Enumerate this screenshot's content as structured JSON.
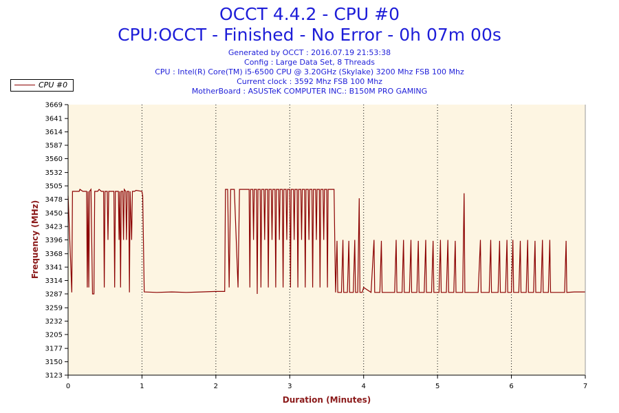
{
  "header": {
    "title": "OCCT 4.4.2 - CPU #0",
    "subtitle": "CPU:OCCT - Finished - No Error - 0h 07m 00s",
    "info_lines": [
      "Generated by OCCT : 2016.07.19 21:53:38",
      "Config : Large Data Set, 8 Threads",
      "CPU : Intel(R) Core(TM) i5-6500 CPU @ 3.20GHz (Skylake) 3200 Mhz FSB 100 Mhz",
      "Current clock : 3592 Mhz FSB 100 Mhz",
      "MotherBoard : ASUSTeK COMPUTER INC.: B150M PRO GAMING"
    ]
  },
  "legend": {
    "label": "CPU #0"
  },
  "colors": {
    "title": "#1d1dd8",
    "axis_label": "#8b1a1a",
    "series": "#8b0000",
    "plot_background": "#fdf5e2"
  },
  "chart_data": {
    "type": "line",
    "xlabel": "Duration (Minutes)",
    "ylabel": "Frequency (MHz)",
    "xlim": [
      0,
      7
    ],
    "ylim": [
      3123,
      3669
    ],
    "x_ticks": [
      0,
      1,
      2,
      3,
      4,
      5,
      6,
      7
    ],
    "y_ticks": [
      3123,
      3150,
      3177,
      3205,
      3232,
      3259,
      3287,
      3314,
      3341,
      3368,
      3396,
      3423,
      3450,
      3478,
      3505,
      3532,
      3560,
      3587,
      3614,
      3641,
      3669
    ],
    "grid": "dotted vertical lines at x ticks",
    "series": [
      {
        "name": "CPU #0",
        "points": [
          [
            0.0,
            3485
          ],
          [
            0.05,
            3290
          ],
          [
            0.06,
            3494
          ],
          [
            0.15,
            3494
          ],
          [
            0.16,
            3498
          ],
          [
            0.2,
            3494
          ],
          [
            0.25,
            3494
          ],
          [
            0.26,
            3300
          ],
          [
            0.27,
            3494
          ],
          [
            0.28,
            3300
          ],
          [
            0.29,
            3494
          ],
          [
            0.31,
            3498
          ],
          [
            0.33,
            3287
          ],
          [
            0.35,
            3287
          ],
          [
            0.36,
            3494
          ],
          [
            0.4,
            3494
          ],
          [
            0.42,
            3498
          ],
          [
            0.45,
            3494
          ],
          [
            0.48,
            3494
          ],
          [
            0.49,
            3300
          ],
          [
            0.5,
            3494
          ],
          [
            0.53,
            3494
          ],
          [
            0.54,
            3396
          ],
          [
            0.55,
            3494
          ],
          [
            0.58,
            3494
          ],
          [
            0.62,
            3494
          ],
          [
            0.63,
            3300
          ],
          [
            0.64,
            3494
          ],
          [
            0.68,
            3494
          ],
          [
            0.69,
            3396
          ],
          [
            0.7,
            3494
          ],
          [
            0.71,
            3300
          ],
          [
            0.72,
            3494
          ],
          [
            0.74,
            3494
          ],
          [
            0.75,
            3396
          ],
          [
            0.76,
            3498
          ],
          [
            0.78,
            3494
          ],
          [
            0.79,
            3396
          ],
          [
            0.8,
            3494
          ],
          [
            0.82,
            3494
          ],
          [
            0.83,
            3290
          ],
          [
            0.84,
            3494
          ],
          [
            0.86,
            3396
          ],
          [
            0.87,
            3494
          ],
          [
            0.9,
            3494
          ],
          [
            0.92,
            3496
          ],
          [
            1.0,
            3494
          ],
          [
            1.01,
            3485
          ],
          [
            1.03,
            3291
          ],
          [
            1.2,
            3290
          ],
          [
            1.4,
            3291
          ],
          [
            1.6,
            3290
          ],
          [
            1.8,
            3291
          ],
          [
            2.0,
            3292
          ],
          [
            2.12,
            3292
          ],
          [
            2.13,
            3498
          ],
          [
            2.16,
            3498
          ],
          [
            2.18,
            3300
          ],
          [
            2.2,
            3498
          ],
          [
            2.25,
            3498
          ],
          [
            2.3,
            3300
          ],
          [
            2.32,
            3498
          ],
          [
            2.4,
            3498
          ],
          [
            2.45,
            3498
          ],
          [
            2.46,
            3300
          ],
          [
            2.47,
            3498
          ],
          [
            2.5,
            3498
          ],
          [
            2.51,
            3396
          ],
          [
            2.52,
            3498
          ],
          [
            2.55,
            3498
          ],
          [
            2.56,
            3287
          ],
          [
            2.57,
            3498
          ],
          [
            2.6,
            3498
          ],
          [
            2.61,
            3300
          ],
          [
            2.62,
            3498
          ],
          [
            2.65,
            3498
          ],
          [
            2.66,
            3396
          ],
          [
            2.67,
            3498
          ],
          [
            2.7,
            3498
          ],
          [
            2.71,
            3300
          ],
          [
            2.72,
            3498
          ],
          [
            2.75,
            3498
          ],
          [
            2.76,
            3396
          ],
          [
            2.77,
            3498
          ],
          [
            2.8,
            3498
          ],
          [
            2.81,
            3300
          ],
          [
            2.82,
            3498
          ],
          [
            2.85,
            3498
          ],
          [
            2.86,
            3396
          ],
          [
            2.87,
            3498
          ],
          [
            2.9,
            3498
          ],
          [
            2.91,
            3300
          ],
          [
            2.92,
            3498
          ],
          [
            2.95,
            3498
          ],
          [
            2.96,
            3396
          ],
          [
            2.97,
            3498
          ],
          [
            3.0,
            3498
          ],
          [
            3.01,
            3300
          ],
          [
            3.02,
            3498
          ],
          [
            3.05,
            3498
          ],
          [
            3.06,
            3396
          ],
          [
            3.07,
            3498
          ],
          [
            3.1,
            3498
          ],
          [
            3.11,
            3300
          ],
          [
            3.12,
            3498
          ],
          [
            3.15,
            3498
          ],
          [
            3.16,
            3396
          ],
          [
            3.17,
            3498
          ],
          [
            3.2,
            3498
          ],
          [
            3.21,
            3300
          ],
          [
            3.22,
            3498
          ],
          [
            3.25,
            3498
          ],
          [
            3.26,
            3396
          ],
          [
            3.27,
            3498
          ],
          [
            3.3,
            3498
          ],
          [
            3.31,
            3300
          ],
          [
            3.32,
            3498
          ],
          [
            3.35,
            3498
          ],
          [
            3.36,
            3396
          ],
          [
            3.37,
            3498
          ],
          [
            3.4,
            3498
          ],
          [
            3.41,
            3300
          ],
          [
            3.42,
            3498
          ],
          [
            3.45,
            3498
          ],
          [
            3.46,
            3396
          ],
          [
            3.47,
            3498
          ],
          [
            3.5,
            3498
          ],
          [
            3.51,
            3300
          ],
          [
            3.52,
            3498
          ],
          [
            3.55,
            3498
          ],
          [
            3.6,
            3498
          ],
          [
            3.61,
            3390
          ],
          [
            3.62,
            3290
          ],
          [
            3.64,
            3394
          ],
          [
            3.65,
            3290
          ],
          [
            3.7,
            3290
          ],
          [
            3.72,
            3396
          ],
          [
            3.73,
            3290
          ],
          [
            3.78,
            3290
          ],
          [
            3.8,
            3394
          ],
          [
            3.81,
            3290
          ],
          [
            3.86,
            3290
          ],
          [
            3.88,
            3396
          ],
          [
            3.89,
            3290
          ],
          [
            3.92,
            3290
          ],
          [
            3.94,
            3480
          ],
          [
            3.95,
            3290
          ],
          [
            3.98,
            3290
          ],
          [
            4.0,
            3300
          ],
          [
            4.1,
            3290
          ],
          [
            4.14,
            3396
          ],
          [
            4.15,
            3290
          ],
          [
            4.22,
            3290
          ],
          [
            4.24,
            3394
          ],
          [
            4.25,
            3290
          ],
          [
            4.35,
            3290
          ],
          [
            4.42,
            3290
          ],
          [
            4.44,
            3396
          ],
          [
            4.45,
            3290
          ],
          [
            4.52,
            3290
          ],
          [
            4.54,
            3396
          ],
          [
            4.55,
            3290
          ],
          [
            4.62,
            3290
          ],
          [
            4.64,
            3396
          ],
          [
            4.65,
            3290
          ],
          [
            4.72,
            3290
          ],
          [
            4.74,
            3394
          ],
          [
            4.75,
            3290
          ],
          [
            4.82,
            3290
          ],
          [
            4.84,
            3396
          ],
          [
            4.85,
            3290
          ],
          [
            4.92,
            3290
          ],
          [
            4.94,
            3394
          ],
          [
            4.95,
            3290
          ],
          [
            5.02,
            3290
          ],
          [
            5.04,
            3396
          ],
          [
            5.05,
            3290
          ],
          [
            5.12,
            3290
          ],
          [
            5.14,
            3396
          ],
          [
            5.15,
            3290
          ],
          [
            5.22,
            3290
          ],
          [
            5.24,
            3394
          ],
          [
            5.25,
            3290
          ],
          [
            5.34,
            3290
          ],
          [
            5.36,
            3490
          ],
          [
            5.37,
            3290
          ],
          [
            5.45,
            3290
          ],
          [
            5.55,
            3290
          ],
          [
            5.58,
            3396
          ],
          [
            5.59,
            3290
          ],
          [
            5.7,
            3290
          ],
          [
            5.72,
            3396
          ],
          [
            5.73,
            3290
          ],
          [
            5.82,
            3290
          ],
          [
            5.84,
            3394
          ],
          [
            5.85,
            3290
          ],
          [
            5.92,
            3290
          ],
          [
            5.94,
            3396
          ],
          [
            5.95,
            3290
          ],
          [
            6.0,
            3290
          ],
          [
            6.02,
            3396
          ],
          [
            6.03,
            3290
          ],
          [
            6.1,
            3290
          ],
          [
            6.12,
            3394
          ],
          [
            6.13,
            3290
          ],
          [
            6.2,
            3290
          ],
          [
            6.22,
            3396
          ],
          [
            6.23,
            3290
          ],
          [
            6.3,
            3290
          ],
          [
            6.32,
            3394
          ],
          [
            6.33,
            3290
          ],
          [
            6.4,
            3290
          ],
          [
            6.42,
            3396
          ],
          [
            6.43,
            3290
          ],
          [
            6.5,
            3290
          ],
          [
            6.52,
            3396
          ],
          [
            6.53,
            3290
          ],
          [
            6.6,
            3290
          ],
          [
            6.72,
            3290
          ],
          [
            6.74,
            3394
          ],
          [
            6.75,
            3290
          ],
          [
            6.85,
            3291
          ],
          [
            7.0,
            3291
          ]
        ]
      }
    ]
  }
}
